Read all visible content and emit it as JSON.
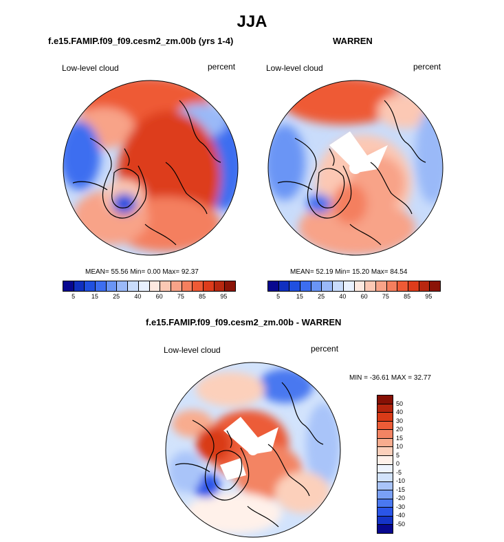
{
  "figure": {
    "title": "JJA"
  },
  "panels": [
    {
      "title": "f.e15.FAMIP.f09_f09.cesm2_zm.00b (yrs 1-4)",
      "variable": "Low-level cloud",
      "units": "percent",
      "mean_label": "MEAN=",
      "mean": "55.56",
      "min_label": "Min=",
      "min": "0.00",
      "max_label": "Max=",
      "max": "92.37"
    },
    {
      "title": "WARREN",
      "variable": "Low-level cloud",
      "units": "percent",
      "mean_label": "MEAN=",
      "mean": "52.19",
      "min_label": "Min=",
      "min": "15.20",
      "max_label": "Max=",
      "max": "84.54"
    },
    {
      "title": "f.e15.FAMIP.f09_f09.cesm2_zm.00b - WARREN",
      "variable": "Low-level cloud",
      "units": "percent",
      "minmax_text": "MIN = -36.61 MAX =  32.77"
    }
  ],
  "colorbar_abs": {
    "colors": [
      "#08088f",
      "#1030c0",
      "#2050e0",
      "#3d6ef0",
      "#6a95f5",
      "#9ab9f8",
      "#c9dcfb",
      "#e9f1fe",
      "#fde9e0",
      "#fcc8b4",
      "#f8a388",
      "#f47f5e",
      "#ee5a35",
      "#dd3c1b",
      "#b82810",
      "#8b1408"
    ],
    "tick_labels": [
      "5",
      "15",
      "25",
      "40",
      "60",
      "75",
      "85",
      "95"
    ]
  },
  "colorbar_diff": {
    "colors": [
      "#08088f",
      "#1534c8",
      "#2a55e8",
      "#4a78f0",
      "#7aa0f5",
      "#a9c4f9",
      "#d2e3fc",
      "#eef4fe",
      "#fff1ea",
      "#fcd0bb",
      "#f8ac8e",
      "#f38463",
      "#ec5c37",
      "#d93b18",
      "#b4240d",
      "#861005"
    ],
    "tick_labels": [
      "50",
      "40",
      "30",
      "20",
      "15",
      "10",
      "5",
      "0",
      "-5",
      "-10",
      "-15",
      "-20",
      "-30",
      "-40",
      "-50"
    ]
  }
}
